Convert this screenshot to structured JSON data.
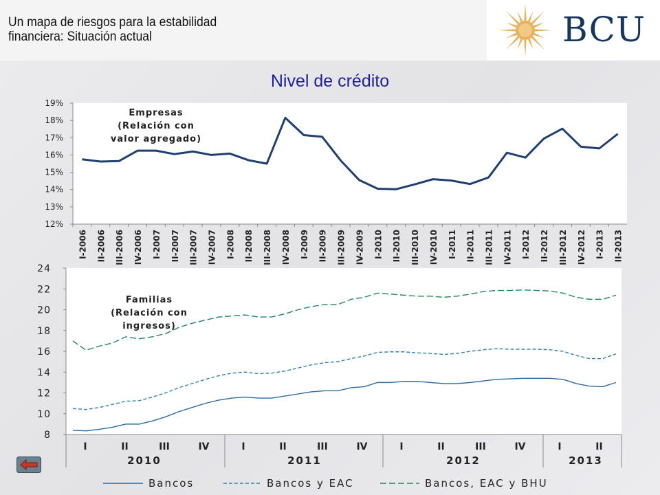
{
  "header": {
    "title_line1": "Un mapa de riesgos para la estabilidad",
    "title_line2": "financiera: Situación actual",
    "brand": "BCU"
  },
  "colors": {
    "sun": "#e8b25c",
    "brand_text": "#17365d",
    "title": "#1f1f9a",
    "line_dark": "#1f3f70",
    "bancos": "#2c6aa3",
    "bancos_eac": "#2f7fb0",
    "bancos_bhu": "#1f8a55"
  },
  "nav": {
    "back_icon": "left-arrow-icon"
  },
  "chart_data": [
    {
      "type": "line",
      "title": "Nivel de crédito",
      "annotation": [
        "Empresas",
        "(Relación con",
        "valor agregado)"
      ],
      "ylim": [
        0.12,
        0.19
      ],
      "yticks": [
        "12%",
        "13%",
        "14%",
        "15%",
        "16%",
        "17%",
        "18%",
        "19%"
      ],
      "grid": false,
      "categories": [
        "I-2006",
        "II-2006",
        "III-2006",
        "IV-2006",
        "I-2007",
        "II-2007",
        "III-2007",
        "IV-2007",
        "I-2008",
        "II-2008",
        "III-2008",
        "IV-2008",
        "I-2009",
        "II-2009",
        "III-2009",
        "IV-2009",
        "I-2010",
        "II-2010",
        "III-2010",
        "IV-2010",
        "I-2011",
        "II-2011",
        "III-2011",
        "IV-2011",
        "I-2012",
        "II-2012",
        "III-2012",
        "IV-2012",
        "I-2013",
        "II-2013"
      ],
      "series": [
        {
          "values": [
            0.1575,
            0.1562,
            0.1565,
            0.1625,
            0.1625,
            0.1605,
            0.162,
            0.16,
            0.1608,
            0.157,
            0.155,
            0.1815,
            0.1715,
            0.1705,
            0.1568,
            0.1455,
            0.1405,
            0.1402,
            0.143,
            0.146,
            0.1452,
            0.1432,
            0.147,
            0.1613,
            0.1585,
            0.1695,
            0.1752,
            0.1648,
            0.1638,
            0.1722
          ]
        }
      ]
    },
    {
      "type": "line",
      "annotation": [
        "Familias",
        "(Relación con",
        "ingresos)"
      ],
      "ylim": [
        8,
        24
      ],
      "yticks": [
        "8",
        "10",
        "12",
        "14",
        "16",
        "18",
        "20",
        "22",
        "24"
      ],
      "grid": false,
      "quarter_labels": [
        "I",
        "II",
        "III",
        "IV",
        "I",
        "II",
        "III",
        "IV",
        "I",
        "II",
        "III",
        "IV",
        "I",
        "II"
      ],
      "year_labels": [
        "2010",
        "2011",
        "2012",
        "2013"
      ],
      "legend_position": "bottom",
      "series": [
        {
          "name": "Bancos",
          "style": "solid",
          "values": [
            8.4,
            8.35,
            8.5,
            8.7,
            9.0,
            9.0,
            9.3,
            9.7,
            10.2,
            10.6,
            11.0,
            11.3,
            11.5,
            11.6,
            11.5,
            11.5,
            11.7,
            11.9,
            12.1,
            12.2,
            12.2,
            12.5,
            12.6,
            13.0,
            13.0,
            13.1,
            13.1,
            13.0,
            12.9,
            12.9,
            13.0,
            13.15,
            13.3,
            13.35,
            13.4,
            13.4,
            13.4,
            13.3,
            12.9,
            12.65,
            12.6,
            13.0
          ]
        },
        {
          "name": "Bancos y EAC",
          "style": "dash",
          "values": [
            10.5,
            10.4,
            10.6,
            10.9,
            11.2,
            11.25,
            11.6,
            12.0,
            12.5,
            12.9,
            13.3,
            13.65,
            13.9,
            14.0,
            13.85,
            13.9,
            14.1,
            14.4,
            14.7,
            14.9,
            15.0,
            15.3,
            15.55,
            15.9,
            15.95,
            15.95,
            15.85,
            15.8,
            15.7,
            15.8,
            16.0,
            16.15,
            16.25,
            16.2,
            16.2,
            16.2,
            16.15,
            16.0,
            15.6,
            15.3,
            15.3,
            15.75
          ]
        },
        {
          "name": "Bancos, EAC y BHU",
          "style": "longdash",
          "values": [
            17.0,
            16.1,
            16.5,
            16.8,
            17.4,
            17.2,
            17.4,
            17.7,
            18.3,
            18.7,
            19.0,
            19.3,
            19.4,
            19.5,
            19.3,
            19.3,
            19.6,
            20.0,
            20.3,
            20.5,
            20.5,
            21.0,
            21.2,
            21.6,
            21.5,
            21.4,
            21.3,
            21.3,
            21.2,
            21.3,
            21.5,
            21.75,
            21.85,
            21.85,
            21.9,
            21.85,
            21.8,
            21.6,
            21.2,
            21.0,
            21.0,
            21.4
          ]
        }
      ]
    }
  ]
}
